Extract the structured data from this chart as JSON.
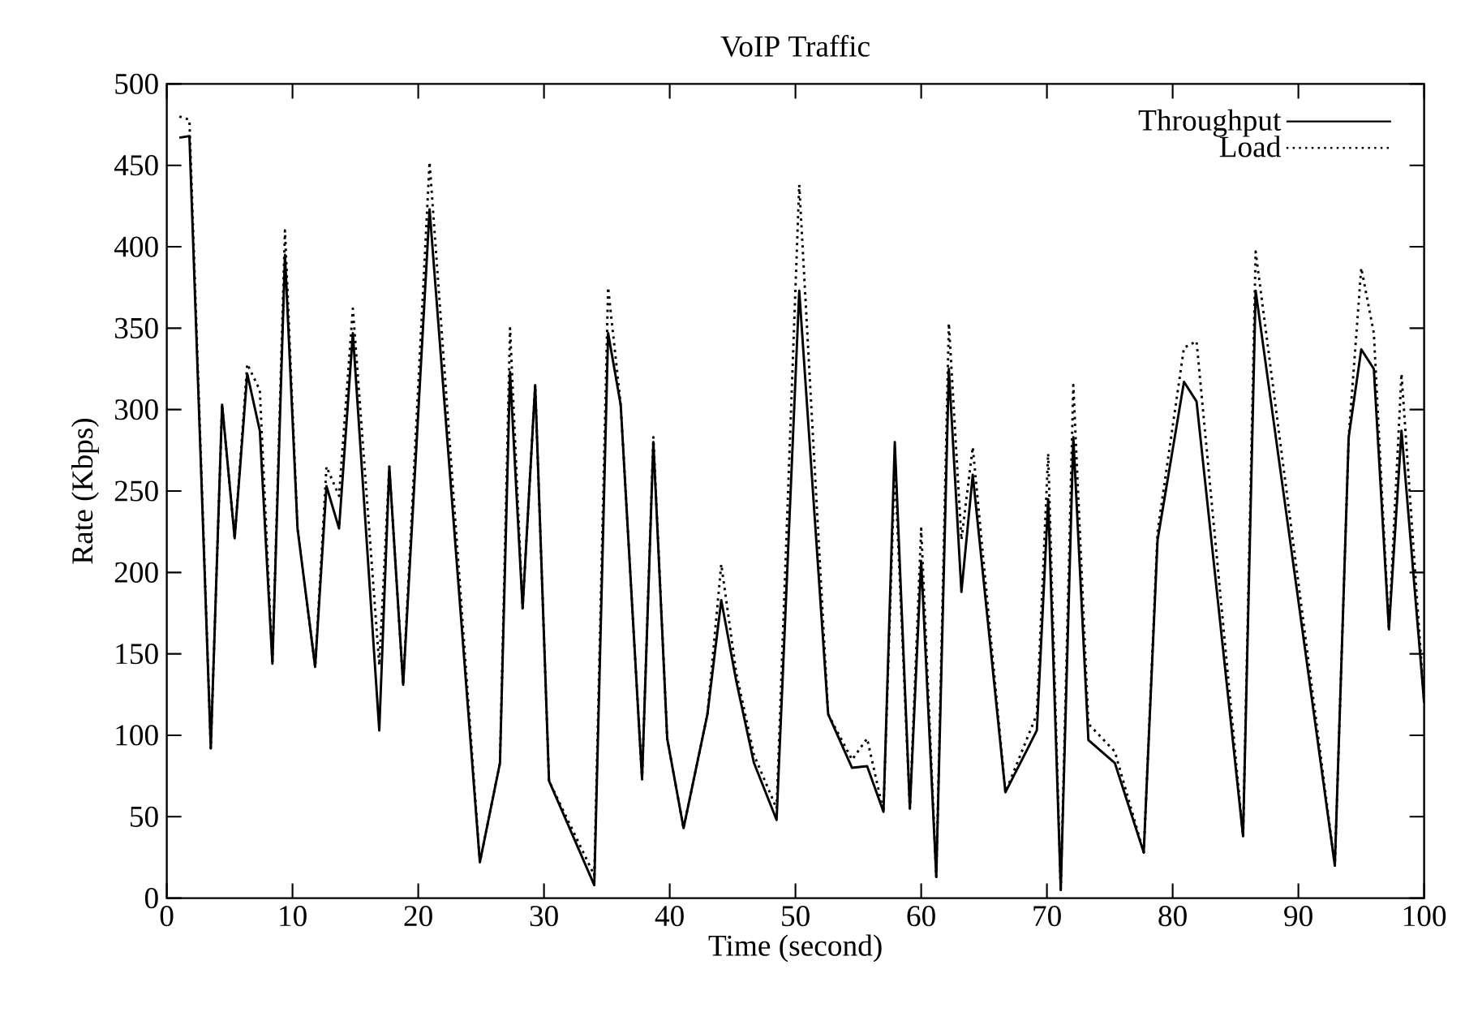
{
  "chart_data": {
    "type": "line",
    "title": "VoIP Traffic",
    "xlabel": "Time (second)",
    "ylabel": "Rate (Kbps)",
    "x": [
      1,
      1.8,
      3.5,
      4.4,
      5.4,
      6.4,
      7.4,
      8.4,
      9.4,
      10.4,
      11.8,
      12.7,
      13.7,
      14.8,
      16.9,
      17.7,
      18.8,
      20.9,
      24.9,
      26.5,
      27.3,
      28.3,
      29.3,
      30.4,
      34.0,
      35.1,
      36.1,
      37.8,
      38.7,
      39.8,
      41.1,
      43.0,
      44.1,
      45.3,
      46.7,
      48.5,
      50.3,
      52.6,
      54.5,
      55.7,
      57.0,
      57.9,
      59.1,
      60.0,
      61.2,
      62.2,
      63.2,
      64.1,
      66.7,
      69.2,
      70.1,
      71.1,
      72.1,
      73.3,
      75.4,
      77.7,
      78.8,
      80.9,
      81.9,
      85.6,
      86.6,
      92.9,
      94.0,
      95.0,
      96.0,
      97.2,
      98.2,
      100
    ],
    "series": [
      {
        "name": "Throughput",
        "color": "#000000",
        "line_style": "solid",
        "values": [
          467,
          468,
          92,
          303,
          221,
          322,
          287,
          144,
          395,
          227,
          142,
          253,
          227,
          347,
          103,
          265,
          131,
          423,
          22,
          83,
          323,
          178,
          315,
          72,
          8,
          347,
          303,
          73,
          280,
          98,
          43,
          113,
          183,
          133,
          83,
          48,
          373,
          113,
          80,
          81,
          53,
          280,
          55,
          207,
          13,
          325,
          188,
          260,
          65,
          103,
          245,
          5,
          283,
          97,
          83,
          28,
          220,
          317,
          305,
          38,
          373,
          20,
          283,
          337,
          325,
          165,
          287,
          120
        ]
      },
      {
        "name": "Load",
        "color": "#000000",
        "line_style": "dotted",
        "values": [
          480,
          478,
          92,
          303,
          221,
          328,
          312,
          144,
          410,
          227,
          142,
          265,
          247,
          362,
          143,
          265,
          131,
          452,
          22,
          83,
          350,
          178,
          315,
          72,
          14,
          375,
          303,
          73,
          283,
          98,
          43,
          113,
          205,
          138,
          88,
          55,
          438,
          113,
          85,
          98,
          53,
          265,
          55,
          227,
          13,
          353,
          220,
          277,
          65,
          113,
          273,
          5,
          315,
          107,
          90,
          28,
          225,
          338,
          342,
          38,
          397,
          20,
          283,
          387,
          347,
          165,
          322,
          120
        ]
      }
    ],
    "xlim": [
      0,
      100
    ],
    "ylim": [
      0,
      500
    ],
    "xticks": [
      0,
      10,
      20,
      30,
      40,
      50,
      60,
      70,
      80,
      90,
      100
    ],
    "yticks": [
      0,
      50,
      100,
      150,
      200,
      250,
      300,
      350,
      400,
      450,
      500
    ],
    "grid": false,
    "legend": "top right"
  }
}
